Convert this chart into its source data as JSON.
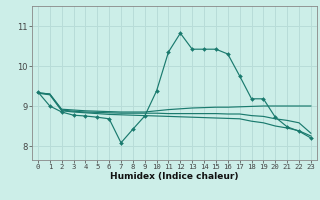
{
  "xlabel": "Humidex (Indice chaleur)",
  "bg_color": "#cceee8",
  "line_color": "#1a7a6e",
  "grid_color": "#b8dcd8",
  "xlim": [
    -0.5,
    23.5
  ],
  "ylim": [
    7.65,
    11.5
  ],
  "xticks": [
    0,
    1,
    2,
    3,
    4,
    5,
    6,
    7,
    8,
    9,
    10,
    11,
    12,
    13,
    14,
    15,
    16,
    17,
    18,
    19,
    20,
    21,
    22,
    23
  ],
  "yticks": [
    8,
    9,
    10,
    11
  ],
  "series": [
    {
      "x": [
        0,
        1,
        2,
        3,
        4,
        5,
        6,
        7,
        8,
        9,
        10,
        11,
        12,
        13,
        14,
        15,
        16,
        17,
        18,
        19,
        20,
        21,
        22,
        23
      ],
      "y": [
        9.35,
        9.0,
        8.85,
        8.77,
        8.75,
        8.72,
        8.68,
        8.08,
        8.42,
        8.75,
        9.38,
        10.35,
        10.82,
        10.42,
        10.42,
        10.42,
        10.3,
        9.75,
        9.18,
        9.18,
        8.72,
        8.48,
        8.37,
        8.2
      ],
      "marker": true
    },
    {
      "x": [
        0,
        1,
        2,
        3,
        4,
        5,
        6,
        7,
        8,
        9,
        10,
        11,
        12,
        13,
        14,
        15,
        16,
        17,
        18,
        19,
        20,
        21,
        22,
        23
      ],
      "y": [
        9.32,
        9.28,
        8.88,
        8.85,
        8.83,
        8.81,
        8.79,
        8.78,
        8.77,
        8.76,
        8.75,
        8.74,
        8.73,
        8.72,
        8.71,
        8.7,
        8.69,
        8.68,
        8.62,
        8.58,
        8.5,
        8.45,
        8.38,
        8.25
      ],
      "marker": false
    },
    {
      "x": [
        0,
        1,
        2,
        3,
        4,
        5,
        6,
        7,
        8,
        9,
        10,
        11,
        12,
        13,
        14,
        15,
        16,
        17,
        18,
        19,
        20,
        21,
        22,
        23
      ],
      "y": [
        9.33,
        9.3,
        8.9,
        8.87,
        8.85,
        8.84,
        8.83,
        8.82,
        8.82,
        8.82,
        8.82,
        8.81,
        8.81,
        8.81,
        8.81,
        8.81,
        8.8,
        8.8,
        8.76,
        8.74,
        8.68,
        8.64,
        8.58,
        8.32
      ],
      "marker": false
    },
    {
      "x": [
        0,
        1,
        2,
        3,
        4,
        5,
        6,
        7,
        8,
        9,
        10,
        11,
        12,
        13,
        14,
        15,
        16,
        17,
        18,
        19,
        20,
        21,
        22,
        23
      ],
      "y": [
        9.33,
        9.3,
        8.92,
        8.9,
        8.88,
        8.87,
        8.86,
        8.85,
        8.85,
        8.85,
        8.88,
        8.91,
        8.93,
        8.95,
        8.96,
        8.97,
        8.97,
        8.98,
        8.99,
        9.0,
        9.0,
        9.0,
        9.0,
        9.0
      ],
      "marker": false
    }
  ]
}
